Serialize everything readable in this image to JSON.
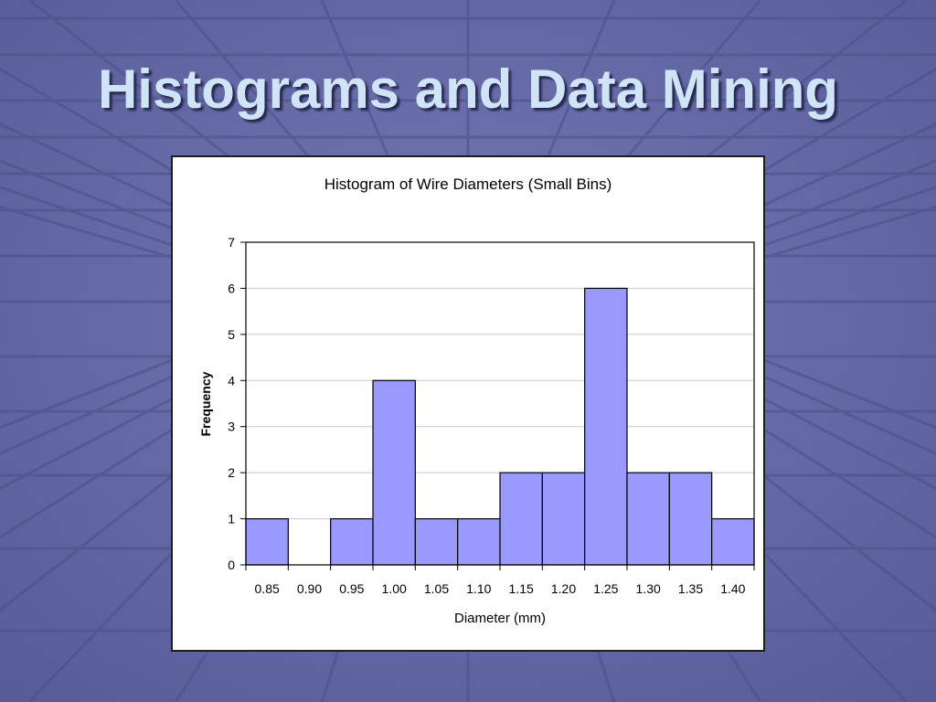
{
  "slide": {
    "title": "Histograms and Data Mining"
  },
  "colors": {
    "background": "#6468a6",
    "bar_fill": "#9999ff",
    "title_text": "#cfe4f7"
  },
  "chart_data": {
    "type": "bar",
    "title": "Histogram of Wire Diameters (Small Bins)",
    "xlabel": "Diameter (mm)",
    "ylabel": "Frequency",
    "categories": [
      "0.85",
      "0.90",
      "0.95",
      "1.00",
      "1.05",
      "1.10",
      "1.15",
      "1.20",
      "1.25",
      "1.30",
      "1.35",
      "1.40"
    ],
    "values": [
      1,
      0,
      1,
      4,
      1,
      1,
      2,
      2,
      6,
      2,
      2,
      1
    ],
    "ylim": [
      0,
      7
    ],
    "yticks": [
      0,
      1,
      2,
      3,
      4,
      5,
      6,
      7
    ],
    "grid": true,
    "legend": "none"
  }
}
